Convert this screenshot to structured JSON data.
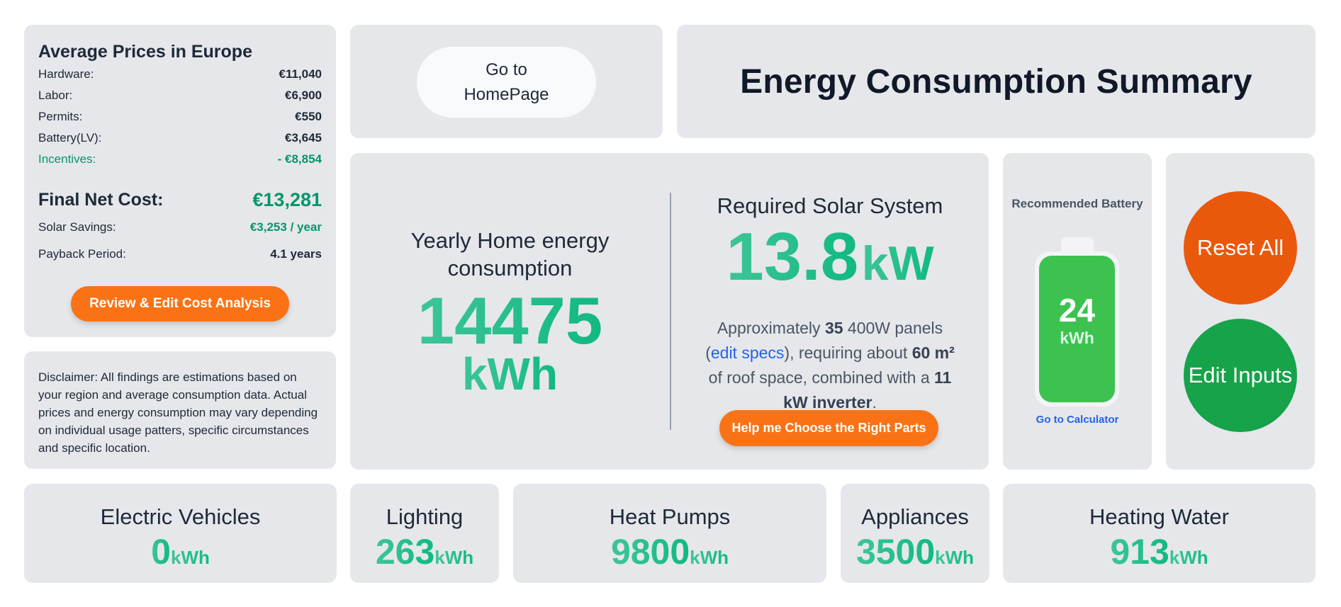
{
  "prices": {
    "title": "Average Prices in Europe",
    "rows": [
      {
        "label": "Hardware:",
        "value": "€11,040"
      },
      {
        "label": "Labor:",
        "value": "€6,900"
      },
      {
        "label": "Permits:",
        "value": "€550"
      },
      {
        "label": "Battery(LV):",
        "value": "€3,645"
      },
      {
        "label": "Incentives:",
        "value": "- €8,854"
      }
    ],
    "final_net_cost_label": "Final Net Cost:",
    "final_net_cost_value": "€13,281",
    "solar_savings_label": "Solar Savings:",
    "solar_savings_value": "€3,253 / year",
    "payback_label": "Payback Period:",
    "payback_value": "4.1 years",
    "review_button": "Review & Edit Cost Analysis"
  },
  "disclaimer": "Disclaimer: All findings are estimations based on your region and average consumption data. Actual prices and energy consumption may vary depending on individual usage patters, specific circumstances and specific location.",
  "home_button": "Go to HomePage",
  "page_title": "Energy Consumption Summary",
  "yearly": {
    "label": "Yearly Home energy consumption",
    "value": "14475",
    "unit": "kWh"
  },
  "solar": {
    "label": "Required Solar System",
    "value": "13.8",
    "unit": "kW",
    "desc": {
      "t1": "Approximately ",
      "panels": "35",
      "t2": " 400W panels (",
      "edit_link": "edit specs",
      "t3": "), requiring about ",
      "area": "60 m²",
      "t4": " of roof space, combined with a ",
      "inverter": "11 kW inverter",
      "t5": "."
    },
    "help_button": "Help me Choose the Right Parts"
  },
  "battery": {
    "label": "Recommended Battery",
    "value": "24",
    "unit": "kWh",
    "calc_link": "Go to Calculator"
  },
  "actions": {
    "reset": "Reset All",
    "edit": "Edit Inputs"
  },
  "stats": [
    {
      "label": "Electric Vehicles",
      "value": "0",
      "unit": "kWh"
    },
    {
      "label": "Lighting",
      "value": "263",
      "unit": "kWh"
    },
    {
      "label": "Heat Pumps",
      "value": "9800",
      "unit": "kWh"
    },
    {
      "label": "Appliances",
      "value": "3500",
      "unit": "kWh"
    },
    {
      "label": "Heating Water",
      "value": "913",
      "unit": "kWh"
    }
  ],
  "colors": {
    "card_bg": "#e5e7eb",
    "accent_green": "#10b981",
    "cost_green": "#059669",
    "orange": "#f97316",
    "reset_orange": "#ea580c",
    "edit_green": "#16a34a",
    "battery_green": "#3dc24f",
    "link_blue": "#2563eb"
  }
}
